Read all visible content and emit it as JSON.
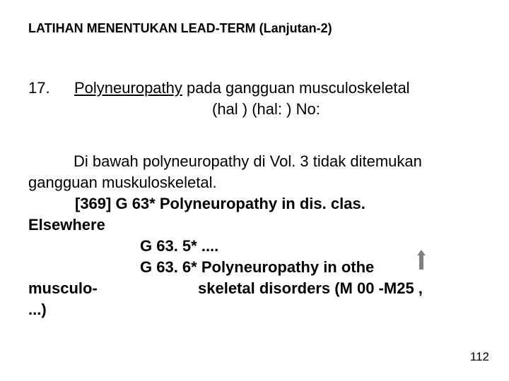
{
  "title": "LATIHAN MENENTUKAN LEAD-TERM  (Lanjutan-2)",
  "item": {
    "num": "17.",
    "term": "Polyneuropathy",
    "rest": " pada gangguan musculoskeletal",
    "line2": "(hal      )  (hal:         )    No:"
  },
  "body": {
    "para": "Di bawah polyneuropathy di Vol. 3 tidak ditemukan gangguan muskuloskeletal.",
    "l369": "[369]  G 63*  Polyneuropathy in dis. clas.",
    "elsewhere": "Elsewhere",
    "g635": "G 63. 5*  ....",
    "g636": "G 63. 6*  Polyneuropathy  in othe",
    "musculo_left": "musculo-",
    "musculo_right": "skeletal disorders  (M 00 -M25  ,",
    "dots": "...)"
  },
  "page": "112",
  "colors": {
    "text": "#000000",
    "bg": "#ffffff",
    "arrow": "#808080"
  }
}
